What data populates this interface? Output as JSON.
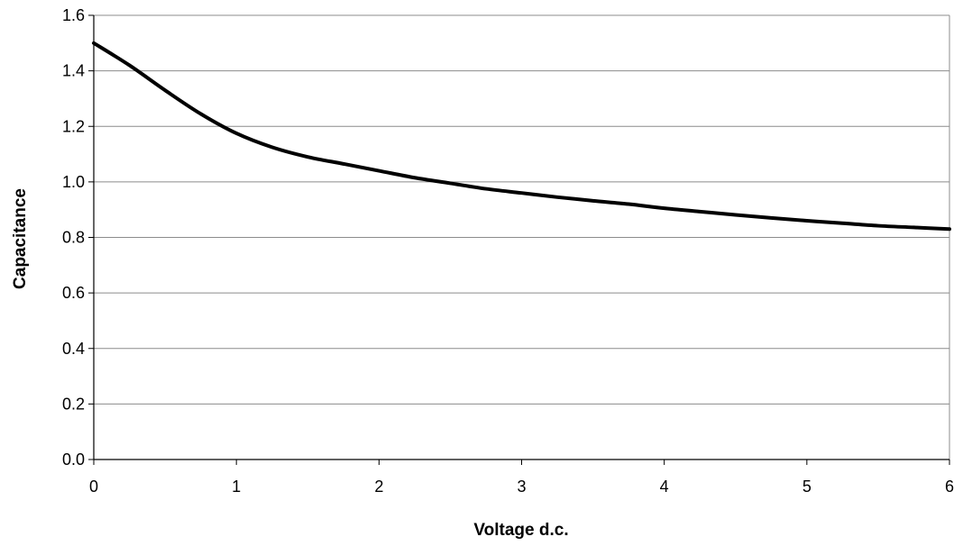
{
  "chart_data": {
    "type": "line",
    "title": "",
    "xlabel": "Voltage d.c.",
    "ylabel": "Capacitance",
    "xlim": [
      0,
      6
    ],
    "ylim": [
      0.0,
      1.6
    ],
    "x_ticks": [
      "0",
      "1",
      "2",
      "3",
      "4",
      "5",
      "6"
    ],
    "y_ticks": [
      "0.0",
      "0.2",
      "0.4",
      "0.6",
      "0.8",
      "1.0",
      "1.2",
      "1.4",
      "1.6"
    ],
    "grid": "horizontal",
    "legend": "none",
    "series": [
      {
        "color": "#000000",
        "x": [
          0,
          0.25,
          0.5,
          0.75,
          1.0,
          1.25,
          1.5,
          1.75,
          2.0,
          2.25,
          2.5,
          2.75,
          3.0,
          3.25,
          3.5,
          3.75,
          4.0,
          4.25,
          4.5,
          4.75,
          5.0,
          5.25,
          5.5,
          5.75,
          6.0
        ],
        "y": [
          1.5,
          1.42,
          1.33,
          1.245,
          1.175,
          1.125,
          1.09,
          1.065,
          1.04,
          1.015,
          0.995,
          0.975,
          0.96,
          0.945,
          0.932,
          0.92,
          0.905,
          0.893,
          0.881,
          0.87,
          0.86,
          0.851,
          0.842,
          0.836,
          0.83
        ]
      }
    ]
  }
}
